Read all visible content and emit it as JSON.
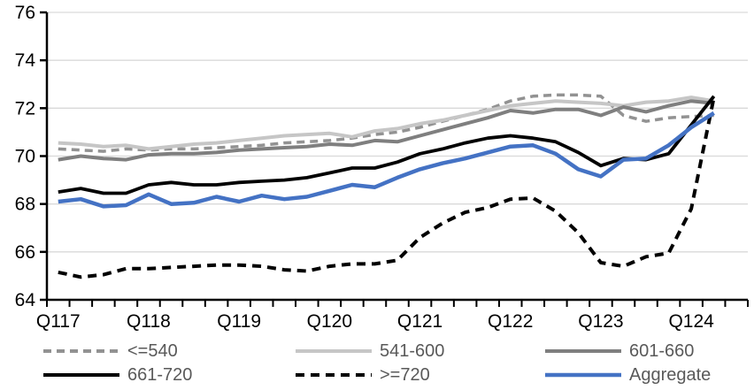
{
  "chart_data": {
    "type": "line",
    "title": "",
    "xlabel": "",
    "ylabel": "",
    "ylim": [
      64,
      76
    ],
    "y_ticks": [
      64,
      66,
      68,
      70,
      72,
      74,
      76
    ],
    "grid": "horizontal",
    "legend_position": "bottom",
    "categories": [
      "Q117",
      "Q217",
      "Q317",
      "Q417",
      "Q118",
      "Q218",
      "Q318",
      "Q418",
      "Q119",
      "Q219",
      "Q319",
      "Q419",
      "Q120",
      "Q220",
      "Q320",
      "Q420",
      "Q121",
      "Q221",
      "Q321",
      "Q421",
      "Q122",
      "Q222",
      "Q322",
      "Q422",
      "Q123",
      "Q223",
      "Q323",
      "Q423",
      "Q124",
      "Q224"
    ],
    "x_axis_labels": [
      "Q117",
      "Q118",
      "Q119",
      "Q120",
      "Q121",
      "Q122",
      "Q123",
      "Q124"
    ],
    "x_label_every": 4,
    "series": [
      {
        "name": "<=540",
        "color": "#929292",
        "style": "dashed",
        "dasharray": "9 6",
        "width": 3.5,
        "values": [
          70.3,
          70.25,
          70.2,
          70.3,
          70.25,
          70.3,
          70.3,
          70.35,
          70.4,
          70.45,
          70.55,
          70.6,
          70.65,
          70.75,
          70.9,
          71.0,
          71.2,
          71.45,
          71.7,
          71.95,
          72.3,
          72.5,
          72.55,
          72.55,
          72.5,
          71.7,
          71.45,
          71.6,
          71.65,
          71.7
        ]
      },
      {
        "name": "541-600",
        "color": "#C6C6C6",
        "style": "solid",
        "dasharray": "",
        "width": 4,
        "values": [
          70.55,
          70.5,
          70.4,
          70.45,
          70.3,
          70.4,
          70.5,
          70.55,
          70.65,
          70.75,
          70.85,
          70.9,
          70.95,
          70.8,
          71.05,
          71.15,
          71.35,
          71.5,
          71.7,
          71.9,
          72.1,
          72.2,
          72.3,
          72.25,
          72.2,
          72.1,
          72.25,
          72.3,
          72.45,
          72.3
        ]
      },
      {
        "name": "601-660",
        "color": "#7F7F7F",
        "style": "solid",
        "dasharray": "",
        "width": 4,
        "values": [
          69.85,
          70.0,
          69.9,
          69.85,
          70.05,
          70.1,
          70.1,
          70.15,
          70.25,
          70.3,
          70.35,
          70.4,
          70.5,
          70.45,
          70.65,
          70.6,
          70.85,
          71.1,
          71.35,
          71.6,
          71.9,
          71.8,
          71.95,
          71.95,
          71.7,
          72.05,
          71.85,
          72.1,
          72.3,
          72.2
        ]
      },
      {
        "name": "661-720",
        "color": "#000000",
        "style": "solid",
        "dasharray": "",
        "width": 3.8,
        "values": [
          68.5,
          68.65,
          68.45,
          68.45,
          68.8,
          68.9,
          68.8,
          68.8,
          68.9,
          68.95,
          69.0,
          69.1,
          69.3,
          69.5,
          69.5,
          69.75,
          70.1,
          70.3,
          70.55,
          70.75,
          70.85,
          70.75,
          70.6,
          70.15,
          69.6,
          69.9,
          69.85,
          70.1,
          71.3,
          72.5
        ]
      },
      {
        "name": ">=720",
        "color": "#000000",
        "style": "dashed",
        "dasharray": "10 7",
        "width": 4,
        "values": [
          65.15,
          64.95,
          65.05,
          65.3,
          65.3,
          65.35,
          65.4,
          65.45,
          65.45,
          65.4,
          65.25,
          65.2,
          65.4,
          65.5,
          65.5,
          65.65,
          66.6,
          67.2,
          67.65,
          67.85,
          68.2,
          68.25,
          67.7,
          66.8,
          65.55,
          65.4,
          65.8,
          65.95,
          67.8,
          72.45
        ]
      },
      {
        "name": "Aggregate",
        "color": "#4472C4",
        "style": "solid",
        "dasharray": "",
        "width": 4.5,
        "values": [
          68.1,
          68.2,
          67.9,
          67.95,
          68.4,
          68.0,
          68.05,
          68.3,
          68.1,
          68.35,
          68.2,
          68.3,
          68.55,
          68.8,
          68.7,
          69.1,
          69.45,
          69.7,
          69.9,
          70.15,
          70.4,
          70.45,
          70.1,
          69.45,
          69.15,
          69.85,
          69.9,
          70.45,
          71.2,
          71.8
        ]
      }
    ],
    "colors": {
      "axis": "#000000",
      "gridline": "#D9D9D9",
      "tick_label": "#000000",
      "legend_text": "#595959"
    },
    "legend_rows": [
      [
        0,
        1,
        2
      ],
      [
        3,
        4,
        5
      ]
    ]
  }
}
